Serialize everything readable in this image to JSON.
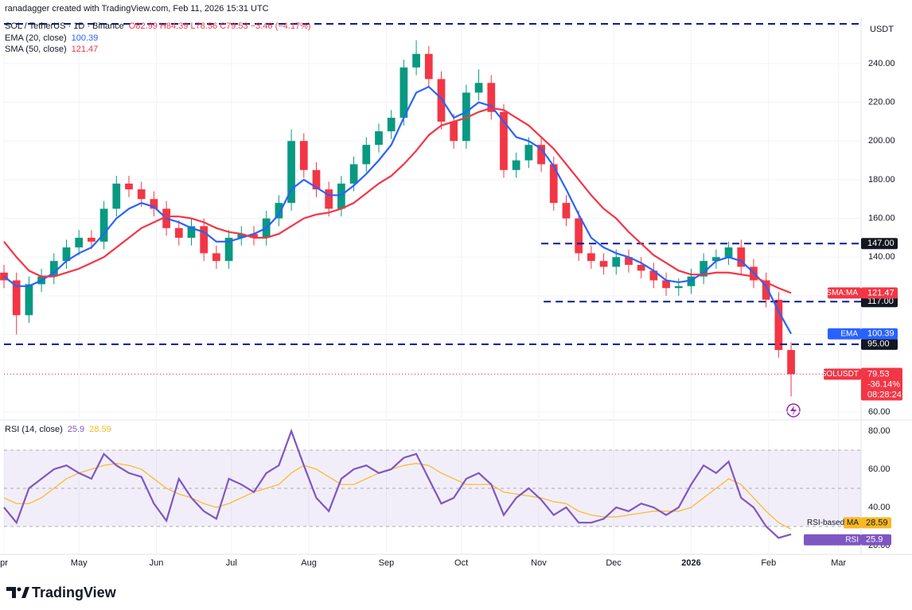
{
  "header": {
    "credit": "ranadagger created with TradingView.com, Feb 11, 2026 15:31 UTC"
  },
  "footer": {
    "logo": "TradingView"
  },
  "chart_data": [
    {
      "type": "candlestick",
      "title": "SOL / TetherUS · 1D · Binance",
      "ohlc_label": "O82.99 H84.39 L78.56 C79.53 −3.46 (−4.17%)",
      "currency": "USDT",
      "symbol_tag": "SOLUSDT",
      "change_label": "-36.14%",
      "countdown": "08:28:24",
      "up_color": "#089981",
      "down_color": "#f23645",
      "grid": true,
      "xlim": [
        0,
        343
      ],
      "ylim": [
        56.3,
        263.8
      ],
      "xticks": [
        {
          "value": 0,
          "label": "pr"
        },
        {
          "value": 30,
          "label": "May"
        },
        {
          "value": 61,
          "label": "Jun"
        },
        {
          "value": 91,
          "label": "Jul"
        },
        {
          "value": 122,
          "label": "Aug"
        },
        {
          "value": 153,
          "label": "Sep"
        },
        {
          "value": 183,
          "label": "Oct"
        },
        {
          "value": 214,
          "label": "Nov"
        },
        {
          "value": 244,
          "label": "Dec"
        },
        {
          "value": 275,
          "label": "2026"
        },
        {
          "value": 306,
          "label": "Feb"
        },
        {
          "value": 334,
          "label": "Mar"
        }
      ],
      "yticks": [
        {
          "value": 60,
          "label": "60.00"
        },
        {
          "value": 80,
          "label": "80.00"
        },
        {
          "value": 100,
          "label": "100.00"
        },
        {
          "value": 120,
          "label": "120.00"
        },
        {
          "value": 140,
          "label": "140.00"
        },
        {
          "value": 160,
          "label": "160.00"
        },
        {
          "value": 180,
          "label": "180.00"
        },
        {
          "value": 200,
          "label": "200.00"
        },
        {
          "value": 220,
          "label": "220.00"
        },
        {
          "value": 240,
          "label": "240.00"
        }
      ],
      "x": [
        0,
        5,
        10,
        15,
        20,
        25,
        30,
        35,
        40,
        45,
        50,
        55,
        60,
        65,
        70,
        75,
        80,
        85,
        90,
        95,
        100,
        105,
        110,
        115,
        120,
        125,
        130,
        135,
        140,
        145,
        150,
        155,
        160,
        165,
        170,
        175,
        180,
        185,
        190,
        195,
        200,
        205,
        210,
        215,
        220,
        225,
        230,
        235,
        240,
        245,
        250,
        255,
        260,
        265,
        270,
        275,
        280,
        285,
        290,
        295,
        300,
        305,
        310,
        315
      ],
      "open": [
        132,
        128,
        110,
        126,
        130,
        138,
        145,
        150,
        148,
        165,
        178,
        175,
        170,
        165,
        155,
        150,
        156,
        142,
        138,
        150,
        152,
        150,
        160,
        168,
        200,
        185,
        175,
        165,
        178,
        188,
        198,
        205,
        212,
        238,
        245,
        232,
        210,
        200,
        225,
        230,
        215,
        185,
        190,
        198,
        188,
        168,
        160,
        142,
        138,
        135,
        140,
        136,
        133,
        128,
        124,
        125,
        130,
        138,
        140,
        145,
        135,
        128,
        118,
        92
      ],
      "high": [
        136,
        132,
        130,
        134,
        142,
        149,
        154,
        154,
        169,
        182,
        182,
        179,
        174,
        169,
        159,
        160,
        160,
        146,
        154,
        156,
        156,
        164,
        172,
        206,
        204,
        189,
        179,
        182,
        192,
        202,
        209,
        216,
        242,
        252,
        249,
        236,
        214,
        229,
        237,
        234,
        219,
        194,
        202,
        202,
        192,
        172,
        164,
        146,
        142,
        144,
        144,
        140,
        137,
        132,
        129,
        134,
        142,
        144,
        148,
        149,
        139,
        132,
        122,
        96
      ],
      "low": [
        124,
        100,
        106,
        122,
        126,
        134,
        141,
        144,
        144,
        161,
        171,
        166,
        161,
        151,
        146,
        146,
        138,
        134,
        134,
        146,
        146,
        146,
        156,
        164,
        181,
        171,
        161,
        161,
        174,
        184,
        194,
        201,
        208,
        234,
        228,
        206,
        196,
        196,
        221,
        211,
        181,
        181,
        186,
        184,
        164,
        156,
        138,
        134,
        131,
        131,
        132,
        129,
        124,
        120,
        120,
        121,
        126,
        134,
        136,
        131,
        124,
        114,
        88,
        68
      ],
      "close": [
        128,
        110,
        126,
        130,
        138,
        145,
        150,
        148,
        165,
        178,
        175,
        170,
        165,
        155,
        150,
        156,
        142,
        138,
        150,
        152,
        150,
        160,
        168,
        200,
        185,
        175,
        165,
        178,
        188,
        198,
        205,
        212,
        238,
        245,
        232,
        210,
        200,
        225,
        230,
        215,
        185,
        190,
        198,
        188,
        168,
        160,
        142,
        138,
        135,
        140,
        136,
        133,
        128,
        124,
        125,
        130,
        138,
        140,
        145,
        135,
        128,
        118,
        92,
        79.53
      ],
      "series": [
        {
          "name": "EMA (20, close)",
          "tag": "EMA",
          "color": "#2962ff",
          "values": [
            130,
            125,
            125,
            128,
            132,
            138,
            142,
            145,
            152,
            160,
            165,
            168,
            166,
            160,
            158,
            155,
            153,
            148,
            148,
            150,
            152,
            155,
            162,
            175,
            180,
            176,
            172,
            172,
            177,
            183,
            190,
            198,
            212,
            225,
            228,
            222,
            212,
            215,
            220,
            218,
            210,
            202,
            200,
            196,
            187,
            175,
            162,
            150,
            145,
            142,
            140,
            137,
            133,
            128,
            127,
            128,
            132,
            138,
            140,
            138,
            132,
            125,
            112,
            100.39
          ]
        },
        {
          "name": "SMA (50, close)",
          "tag": "SMA:MA",
          "color": "#f23645",
          "values": [
            148,
            140,
            133,
            130,
            130,
            132,
            134,
            137,
            140,
            145,
            150,
            155,
            158,
            161,
            161,
            160,
            158,
            155,
            153,
            152,
            150,
            150,
            152,
            156,
            160,
            162,
            163,
            165,
            168,
            173,
            178,
            182,
            188,
            195,
            203,
            208,
            210,
            212,
            215,
            217,
            216,
            212,
            208,
            202,
            196,
            188,
            180,
            172,
            165,
            160,
            153,
            147,
            141,
            137,
            133,
            131,
            131,
            132,
            132,
            131,
            130,
            127,
            124,
            121.47
          ]
        }
      ],
      "levels": [
        {
          "value": 260.5,
          "start": 0
        },
        {
          "value": 147,
          "label": "147.00",
          "start": 215
        },
        {
          "value": 117,
          "label": "117.00",
          "start": 216
        },
        {
          "value": 95,
          "label": "95.00",
          "start": 0
        }
      ]
    },
    {
      "type": "line",
      "title": "RSI (14, close)",
      "ylim": [
        15.4,
        85
      ],
      "yticks": [
        {
          "value": 20,
          "label": "20.00"
        },
        {
          "value": 40,
          "label": "40.00"
        },
        {
          "value": 60,
          "label": "60.00"
        },
        {
          "value": 80,
          "label": "80.00"
        }
      ],
      "band": [
        30,
        70
      ],
      "midline": 50,
      "series": [
        {
          "name": "RSI",
          "color": "#7e57c2",
          "values": [
            40,
            32,
            50,
            55,
            60,
            62,
            58,
            55,
            68,
            62,
            58,
            56,
            42,
            33,
            55,
            45,
            38,
            34,
            55,
            52,
            48,
            58,
            62,
            80,
            62,
            45,
            38,
            55,
            60,
            62,
            58,
            60,
            66,
            68,
            55,
            42,
            45,
            55,
            58,
            52,
            36,
            45,
            50,
            44,
            36,
            40,
            32,
            32,
            34,
            40,
            38,
            42,
            40,
            36,
            40,
            52,
            62,
            58,
            64,
            45,
            40,
            30,
            24,
            25.9
          ]
        },
        {
          "name": "RSI-based MA",
          "color": "#f7b924",
          "values": [
            45,
            42,
            42,
            45,
            50,
            55,
            58,
            60,
            62,
            63,
            62,
            60,
            55,
            50,
            47,
            45,
            42,
            40,
            42,
            45,
            48,
            50,
            52,
            58,
            62,
            60,
            56,
            52,
            52,
            55,
            58,
            60,
            62,
            63,
            62,
            58,
            55,
            52,
            52,
            52,
            48,
            47,
            46,
            45,
            43,
            42,
            38,
            36,
            35,
            35,
            36,
            37,
            38,
            38,
            38,
            40,
            45,
            50,
            55,
            52,
            45,
            38,
            32,
            28.59
          ]
        }
      ]
    }
  ]
}
